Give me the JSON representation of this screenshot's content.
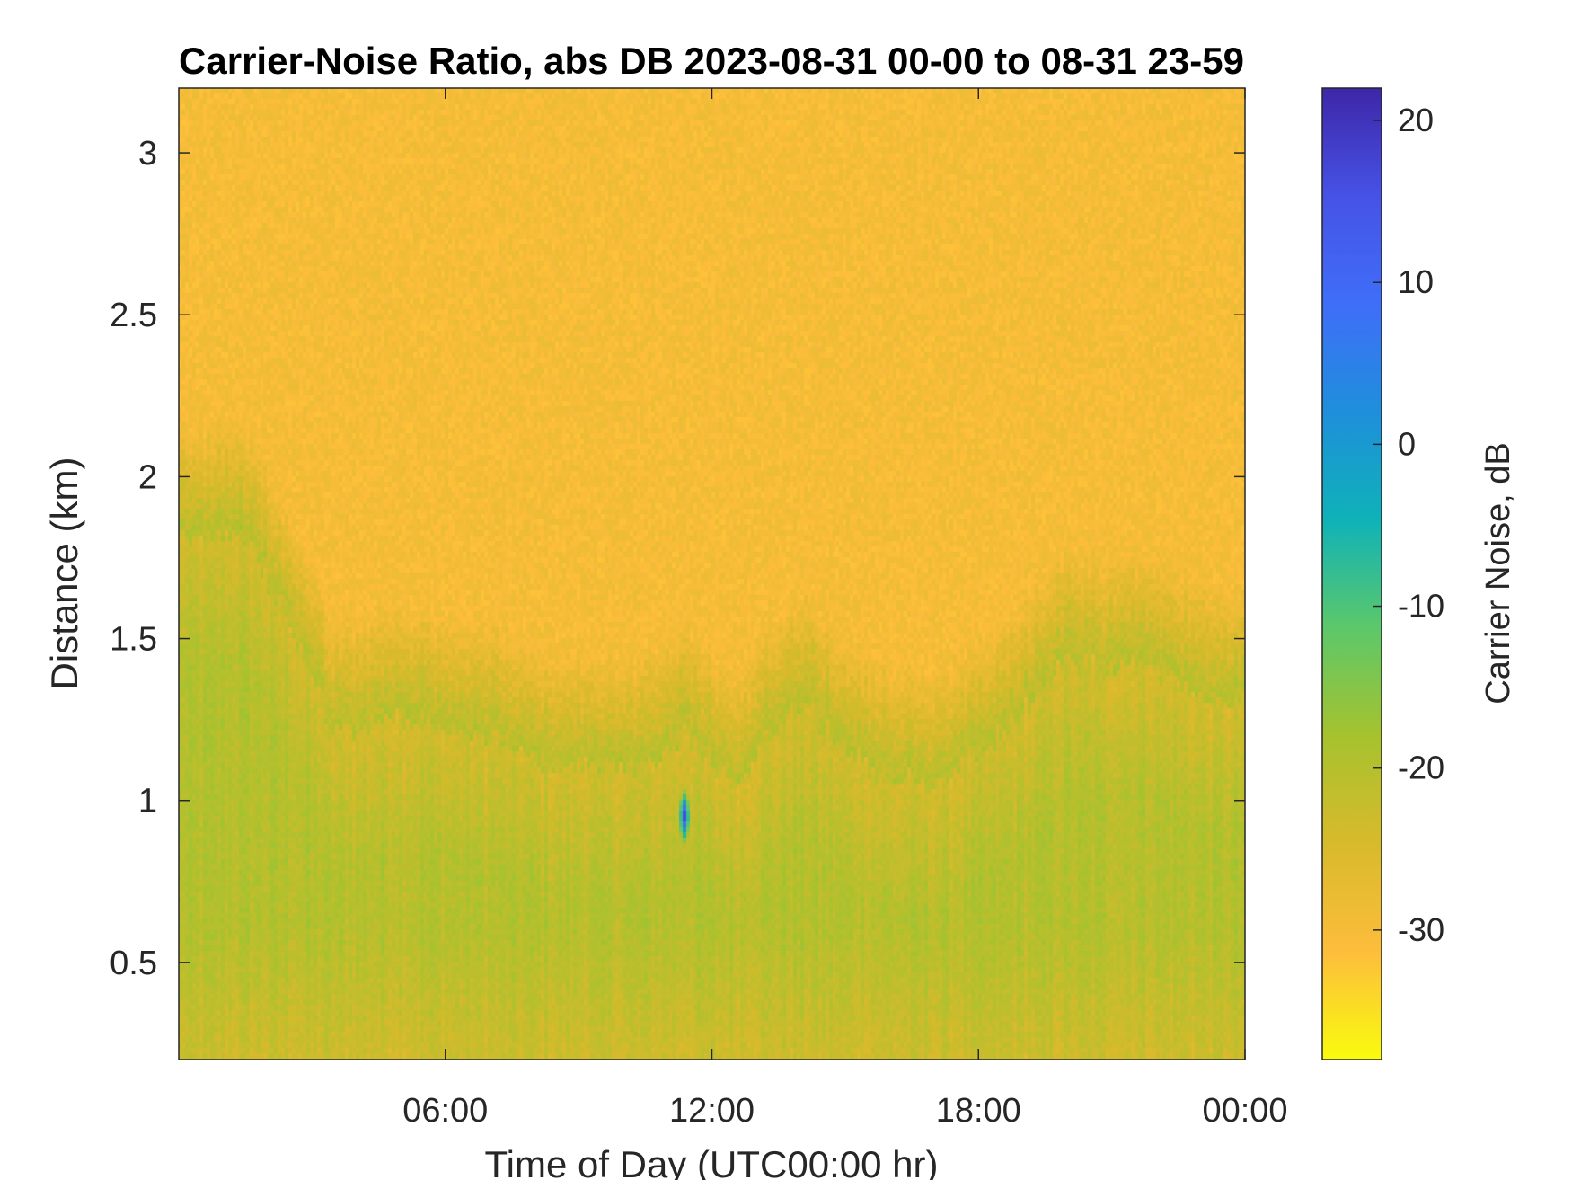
{
  "chart_data": {
    "type": "heatmap",
    "title": "Carrier-Noise Ratio, abs DB 2023-08-31 00-00 to 08-31 23-59",
    "xlabel": "Time of Day (UTC00:00 hr)",
    "ylabel": "Distance (km)",
    "xlim_hours": [
      0,
      24
    ],
    "ylim": [
      0.2,
      3.2
    ],
    "x_ticks": [
      {
        "value": 6,
        "label": "06:00"
      },
      {
        "value": 12,
        "label": "12:00"
      },
      {
        "value": 18,
        "label": "18:00"
      },
      {
        "value": 24,
        "label": "00:00"
      }
    ],
    "y_ticks": [
      {
        "value": 0.5,
        "label": "0.5"
      },
      {
        "value": 1,
        "label": "1"
      },
      {
        "value": 1.5,
        "label": "1.5"
      },
      {
        "value": 2,
        "label": "2"
      },
      {
        "value": 2.5,
        "label": "2.5"
      },
      {
        "value": 3,
        "label": "3"
      }
    ],
    "colorbar": {
      "label": "Carrier Noise, dB",
      "clim": [
        -38,
        22
      ],
      "ticks": [
        {
          "value": 20,
          "label": "20"
        },
        {
          "value": 10,
          "label": "10"
        },
        {
          "value": 0,
          "label": "0"
        },
        {
          "value": -10,
          "label": "-10"
        },
        {
          "value": -20,
          "label": "-20"
        },
        {
          "value": -30,
          "label": "-30"
        }
      ],
      "colormap": [
        "#f9fb0e",
        "#fdbd3c",
        "#d8ba2c",
        "#a6c22e",
        "#5cc86a",
        "#0fb2b8",
        "#1e8fdb",
        "#3f6ef8",
        "#4652e6",
        "#3e26a8"
      ]
    },
    "boundary_layer_top_km": [
      {
        "hour": 0.0,
        "km": 1.8
      },
      {
        "hour": 1.5,
        "km": 1.82
      },
      {
        "hour": 2.5,
        "km": 1.55
      },
      {
        "hour": 3.5,
        "km": 1.2
      },
      {
        "hour": 5.0,
        "km": 1.25
      },
      {
        "hour": 7.0,
        "km": 1.2
      },
      {
        "hour": 8.5,
        "km": 1.1
      },
      {
        "hour": 10.5,
        "km": 1.1
      },
      {
        "hour": 11.5,
        "km": 1.2
      },
      {
        "hour": 12.5,
        "km": 1.05
      },
      {
        "hour": 14.0,
        "km": 1.3
      },
      {
        "hour": 15.5,
        "km": 1.1
      },
      {
        "hour": 17.0,
        "km": 1.05
      },
      {
        "hour": 18.5,
        "km": 1.2
      },
      {
        "hour": 20.0,
        "km": 1.42
      },
      {
        "hour": 22.0,
        "km": 1.4
      },
      {
        "hour": 23.0,
        "km": 1.32
      },
      {
        "hour": 24.0,
        "km": 1.3
      }
    ],
    "background_dB": -30,
    "mixed_layer_dB": -20,
    "peak_event": {
      "hour": 11.4,
      "km": 0.95,
      "dB": 20
    }
  }
}
